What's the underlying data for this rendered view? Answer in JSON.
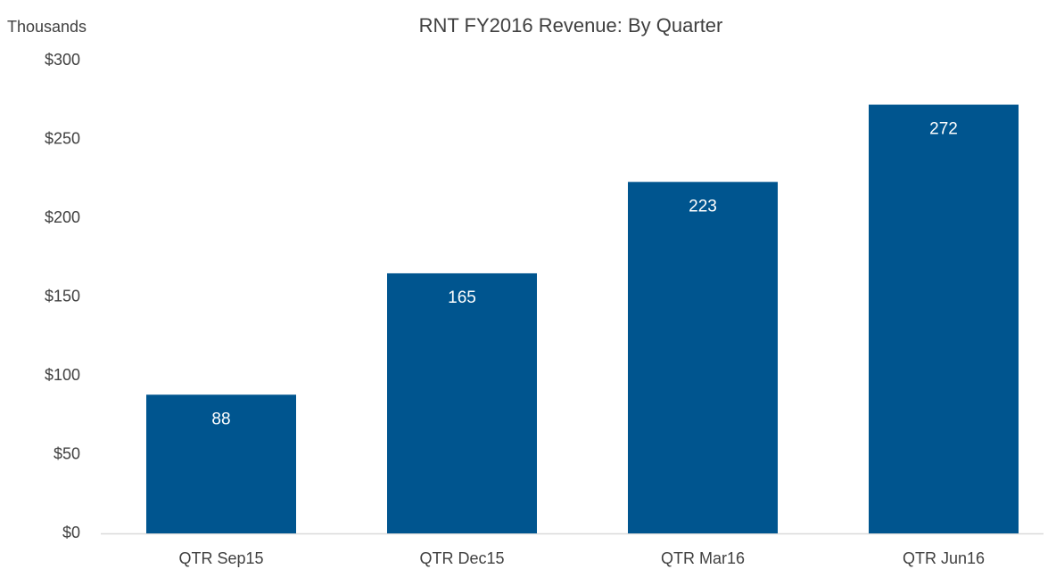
{
  "chart_data": {
    "type": "bar",
    "title": "RNT FY2016 Revenue: By Quarter",
    "y_axis_label": "Thousands",
    "categories": [
      "QTR Sep15",
      "QTR Dec15",
      "QTR Mar16",
      "QTR Jun16"
    ],
    "values": [
      88,
      165,
      223,
      272
    ],
    "color": "#00558f",
    "ylim": [
      0,
      300
    ],
    "yticks": [
      {
        "value": 0,
        "label": "$0"
      },
      {
        "value": 50,
        "label": "$50"
      },
      {
        "value": 100,
        "label": "$100"
      },
      {
        "value": 150,
        "label": "$150"
      },
      {
        "value": 200,
        "label": "$200"
      },
      {
        "value": 250,
        "label": "$250"
      },
      {
        "value": 300,
        "label": "$300"
      }
    ],
    "grid": false
  }
}
